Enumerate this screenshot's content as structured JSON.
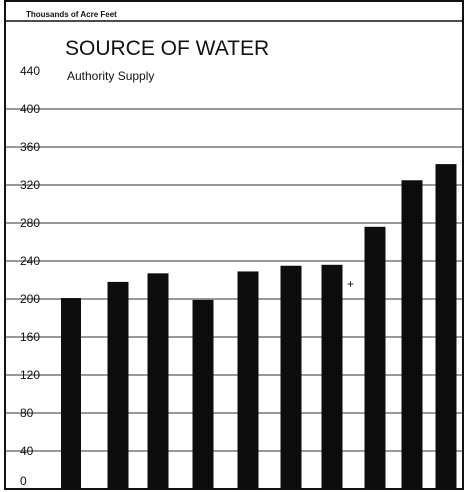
{
  "chart_data": {
    "type": "bar",
    "title": "SOURCE OF WATER",
    "subtitle": "Authority Supply",
    "ylabel": "Thousands of Acre Feet",
    "ylim": [
      0,
      440
    ],
    "yticks": [
      0,
      40,
      80,
      120,
      160,
      200,
      240,
      280,
      320,
      360,
      400,
      440
    ],
    "grid": true,
    "values": [
      201,
      218,
      227,
      199,
      229,
      235,
      236,
      276,
      325,
      342
    ],
    "marker": "+"
  }
}
